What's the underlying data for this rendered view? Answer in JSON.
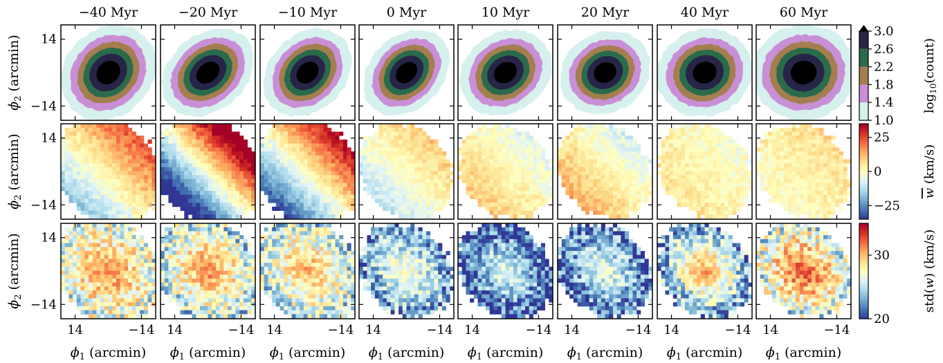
{
  "chart_data": {
    "type": "heatmap",
    "columns": [
      "−40 Myr",
      "−20 Myr",
      "−10 Myr",
      "0 Myr",
      "10 Myr",
      "20 Myr",
      "40 Myr",
      "60 Myr"
    ],
    "x_ticks": [
      "14",
      "−14"
    ],
    "y_ticks": [
      "14",
      "−14"
    ],
    "x_label_symbol": "ϕ",
    "x_label_sub": "1",
    "x_label_unit": " (arcmin)",
    "y_label_symbol": "ϕ",
    "y_label_sub": "2",
    "y_label_unit": " (arcmin)",
    "xlim": [
      20,
      -20
    ],
    "ylim": [
      -20,
      20
    ],
    "rows": [
      {
        "name": "count",
        "colorbar_label_pre": "log",
        "colorbar_label_sub": "10",
        "colorbar_label_post": "(count)",
        "range": [
          1.0,
          3.0
        ],
        "ticks": [
          "3.0",
          "2.6",
          "2.2",
          "1.8",
          "1.4",
          "1.0"
        ],
        "levels": [
          1.0,
          1.4,
          1.8,
          2.2,
          2.6,
          3.0
        ],
        "colors": [
          "#d6f0ee",
          "#c98fd6",
          "#a47e4e",
          "#2a6b4c",
          "#262447",
          "#000000"
        ],
        "panels": [
          {
            "angle": 45,
            "a": 0.55,
            "b": 0.5,
            "sigma": 7.2
          },
          {
            "angle": 40,
            "a": 0.55,
            "b": 0.44,
            "sigma": 6.8
          },
          {
            "angle": 45,
            "a": 0.53,
            "b": 0.44,
            "sigma": 6.6
          },
          {
            "angle": 45,
            "a": 0.52,
            "b": 0.42,
            "sigma": 6.2
          },
          {
            "angle": 35,
            "a": 0.52,
            "b": 0.46,
            "sigma": 6.2
          },
          {
            "angle": 30,
            "a": 0.5,
            "b": 0.46,
            "sigma": 6.4
          },
          {
            "angle": 20,
            "a": 0.52,
            "b": 0.5,
            "sigma": 7.0
          },
          {
            "angle": 10,
            "a": 0.56,
            "b": 0.55,
            "sigma": 7.6
          }
        ]
      },
      {
        "name": "mean_w",
        "colorbar_label_pre": "",
        "colorbar_label_symbol": "w",
        "colorbar_label_post": " (km/s)",
        "range": [
          -35,
          35
        ],
        "ticks": [
          "25",
          "0",
          "−25"
        ],
        "tick_values": [
          25,
          0,
          -25
        ],
        "panels": [
          {
            "gradient": 14,
            "offset": 4
          },
          {
            "gradient": 30,
            "offset": 0
          },
          {
            "gradient": 22,
            "offset": 1
          },
          {
            "gradient": 8,
            "offset": 0
          },
          {
            "gradient": -6,
            "offset": 2
          },
          {
            "gradient": -8,
            "offset": 3
          },
          {
            "gradient": -3,
            "offset": 2
          },
          {
            "gradient": 3,
            "offset": 3
          }
        ]
      },
      {
        "name": "std_w",
        "colorbar_label_pre": "std(",
        "colorbar_label_symbol": "w",
        "colorbar_label_post": ") (km/s)",
        "range": [
          20,
          35
        ],
        "ticks": [
          "30",
          "20"
        ],
        "tick_values": [
          30,
          20
        ],
        "panels": [
          {
            "center": 31.5,
            "edge": 26
          },
          {
            "center": 31.5,
            "edge": 25
          },
          {
            "center": 30.5,
            "edge": 25
          },
          {
            "center": 27.5,
            "edge": 23
          },
          {
            "center": 26.5,
            "edge": 21
          },
          {
            "center": 27,
            "edge": 21.5
          },
          {
            "center": 31,
            "edge": 23
          },
          {
            "center": 33,
            "edge": 26
          }
        ]
      }
    ]
  }
}
